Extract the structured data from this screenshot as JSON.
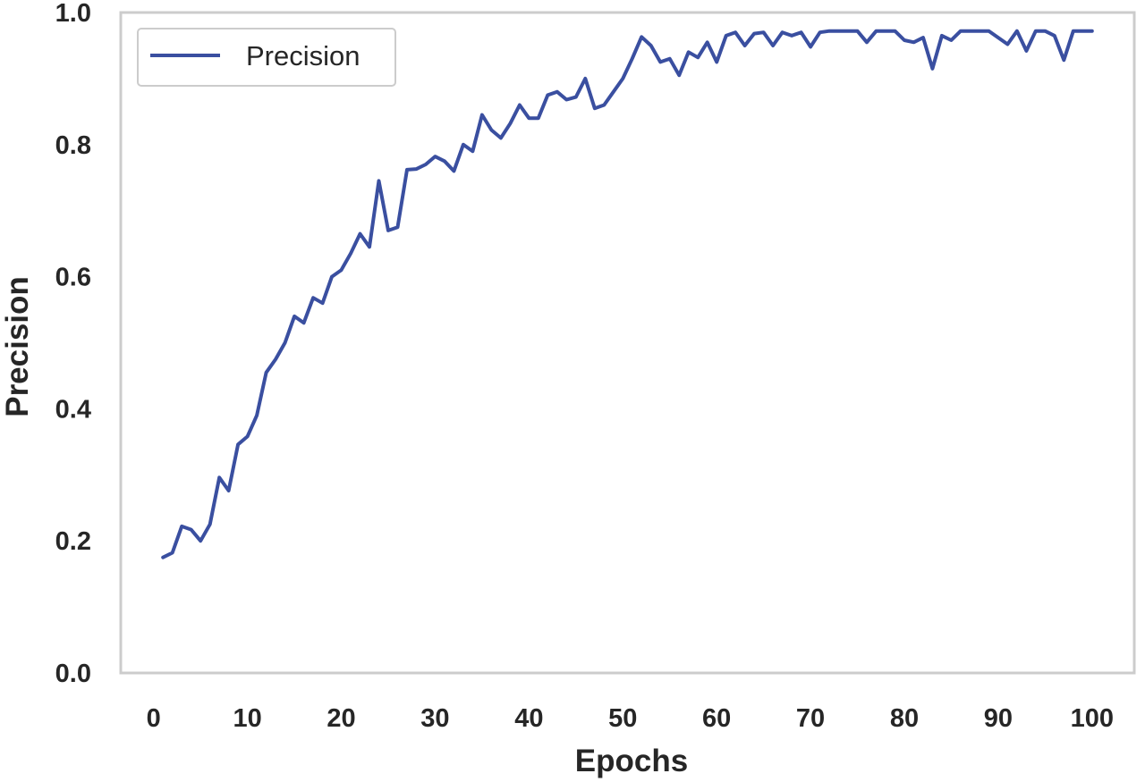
{
  "chart_data": {
    "type": "line",
    "title": "",
    "xlabel": "Epochs",
    "ylabel": "Precision",
    "xlim": [
      -3.5,
      104.5
    ],
    "ylim": [
      0.0,
      1.0
    ],
    "xticks": [
      0,
      10,
      20,
      30,
      40,
      50,
      60,
      70,
      80,
      90,
      100
    ],
    "yticks": [
      0.0,
      0.2,
      0.4,
      0.6,
      0.8,
      1.0
    ],
    "xtick_labels": [
      "0",
      "10",
      "20",
      "30",
      "40",
      "50",
      "60",
      "70",
      "80",
      "90",
      "100"
    ],
    "ytick_labels": [
      "0.0",
      "0.2",
      "0.4",
      "0.6",
      "0.8",
      "1.0"
    ],
    "grid": false,
    "legend": {
      "position": "top-left",
      "entries": [
        "Precision"
      ]
    },
    "series": [
      {
        "name": "Precision",
        "color": "#3a4fa0",
        "x": [
          1,
          2,
          3,
          4,
          5,
          6,
          7,
          8,
          9,
          10,
          11,
          12,
          13,
          14,
          15,
          16,
          17,
          18,
          19,
          20,
          21,
          22,
          23,
          24,
          25,
          26,
          27,
          28,
          29,
          30,
          31,
          32,
          33,
          34,
          35,
          36,
          37,
          38,
          39,
          40,
          41,
          42,
          43,
          44,
          45,
          46,
          47,
          48,
          49,
          50,
          51,
          52,
          53,
          54,
          55,
          56,
          57,
          58,
          59,
          60,
          61,
          62,
          63,
          64,
          65,
          66,
          67,
          68,
          69,
          70,
          71,
          72,
          73,
          74,
          75,
          76,
          77,
          78,
          79,
          80,
          81,
          82,
          83,
          84,
          85,
          86,
          87,
          88,
          89,
          90,
          91,
          92,
          93,
          94,
          95,
          96,
          97,
          98,
          99,
          100
        ],
        "y": [
          0.175,
          0.182,
          0.222,
          0.217,
          0.2,
          0.225,
          0.296,
          0.276,
          0.346,
          0.358,
          0.39,
          0.455,
          0.475,
          0.5,
          0.54,
          0.53,
          0.568,
          0.56,
          0.6,
          0.61,
          0.635,
          0.665,
          0.645,
          0.745,
          0.67,
          0.675,
          0.762,
          0.763,
          0.77,
          0.782,
          0.775,
          0.76,
          0.8,
          0.79,
          0.845,
          0.822,
          0.81,
          0.832,
          0.86,
          0.84,
          0.84,
          0.875,
          0.88,
          0.868,
          0.872,
          0.9,
          0.855,
          0.86,
          0.88,
          0.9,
          0.93,
          0.963,
          0.95,
          0.925,
          0.93,
          0.905,
          0.94,
          0.932,
          0.955,
          0.925,
          0.965,
          0.97,
          0.95,
          0.968,
          0.97,
          0.95,
          0.97,
          0.965,
          0.97,
          0.948,
          0.97,
          0.972,
          0.972,
          0.972,
          0.972,
          0.955,
          0.972,
          0.972,
          0.972,
          0.958,
          0.955,
          0.962,
          0.915,
          0.965,
          0.958,
          0.972,
          0.972,
          0.972,
          0.972,
          0.962,
          0.952,
          0.972,
          0.942,
          0.972,
          0.972,
          0.965,
          0.928,
          0.972,
          0.972,
          0.972
        ]
      }
    ]
  }
}
